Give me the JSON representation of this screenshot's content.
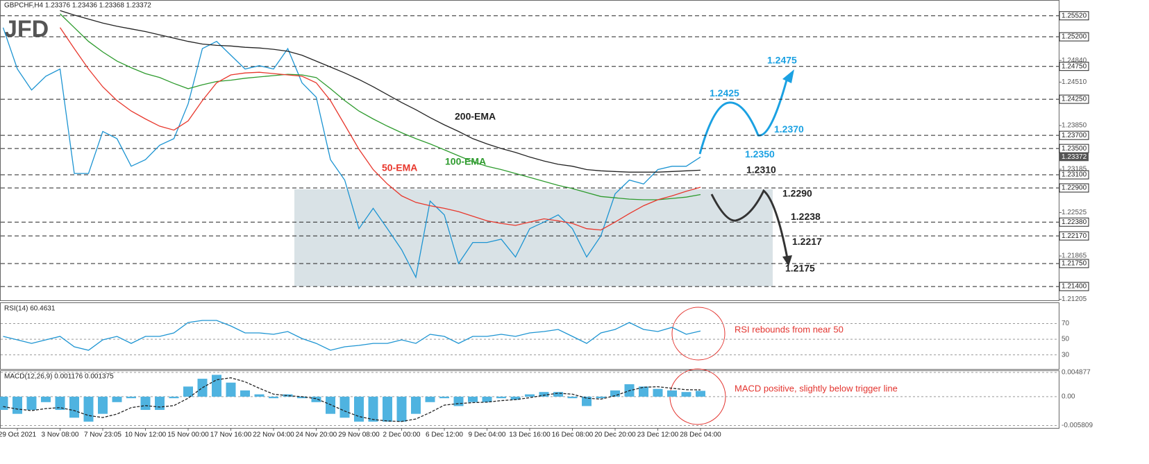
{
  "chart_data": [
    {
      "type": "line",
      "header": "GBPCHF,H4  1.23376 1.23436 1.23368 1.23372",
      "logo": "JFD",
      "categories": [
        null,
        "29 Oct 2021",
        null,
        null,
        "3 Nov 08:00",
        null,
        null,
        "7 Nov 23:05",
        null,
        null,
        "10 Nov 12:00",
        null,
        null,
        "15 Nov 00:00",
        null,
        null,
        "17 Nov 16:00",
        null,
        null,
        "22 Nov 04:00",
        null,
        null,
        "24 Nov 20:00",
        null,
        null,
        "29 Nov 08:00",
        null,
        null,
        "2 Dec 00:00",
        null,
        null,
        "6 Dec 12:00",
        null,
        null,
        "9 Dec 04:00",
        null,
        null,
        "13 Dec 16:00",
        null,
        null,
        "16 Dec 08:00",
        null,
        null,
        "20 Dec 20:00",
        null,
        null,
        "23 Dec 12:00",
        null,
        null,
        "28 Dec 04:00"
      ],
      "series": [
        {
          "color": "#1c94d2",
          "values": [
            1.2534,
            1.2471,
            1.2439,
            1.246,
            1.2471,
            1.2312,
            1.2312,
            1.2376,
            1.2365,
            1.2323,
            1.2333,
            1.2355,
            1.2365,
            1.2418,
            1.2502,
            1.2513,
            1.2492,
            1.2471,
            1.2476,
            1.2471,
            1.2502,
            1.245,
            1.2428,
            1.2333,
            1.2302,
            1.2228,
            1.2259,
            1.2228,
            1.2196,
            1.2154,
            1.227,
            1.2249,
            1.2175,
            1.2207,
            1.2207,
            1.2212,
            1.2185,
            1.2228,
            1.2238,
            1.2249,
            1.2228,
            1.2185,
            1.2217,
            1.2281,
            1.2302,
            1.2296,
            1.2318,
            1.2323,
            1.2323,
            1.2337
          ]
        },
        {
          "name": "200-EMA",
          "color": "#222222",
          "values": [
            null,
            null,
            null,
            null,
            1.256,
            1.2553,
            1.2547,
            1.2541,
            1.2536,
            1.2532,
            1.2528,
            1.2523,
            1.2518,
            1.2513,
            1.2509,
            1.2507,
            1.2506,
            1.2504,
            1.2503,
            1.2501,
            1.2498,
            1.2492,
            1.2483,
            1.2474,
            1.2465,
            1.2455,
            1.2444,
            1.2432,
            1.242,
            1.2409,
            1.2397,
            1.2386,
            1.2376,
            1.2365,
            1.2357,
            1.235,
            1.2344,
            1.2337,
            1.2331,
            1.2326,
            1.2323,
            1.2318,
            1.2316,
            1.2315,
            1.2314,
            1.2314,
            1.2314,
            1.2315,
            1.2316,
            1.2317
          ]
        },
        {
          "name": "100-EMA",
          "color": "#2e9b2e",
          "values": [
            null,
            null,
            null,
            null,
            1.2555,
            1.2534,
            1.2513,
            1.2497,
            1.2483,
            1.2473,
            1.2464,
            1.2458,
            1.2449,
            1.2441,
            1.2447,
            1.2452,
            1.2454,
            1.2457,
            1.2459,
            1.2461,
            1.2463,
            1.2462,
            1.2458,
            1.2441,
            1.2423,
            1.2407,
            1.2395,
            1.2384,
            1.2374,
            1.2365,
            1.2357,
            1.2348,
            1.2339,
            1.233,
            1.2323,
            1.2318,
            1.2312,
            1.2306,
            1.23,
            1.2294,
            1.2289,
            1.2283,
            1.2277,
            1.2275,
            1.2273,
            1.2272,
            1.2272,
            1.2274,
            1.2276,
            1.228
          ]
        },
        {
          "name": "50-EMA",
          "color": "#e8372c",
          "values": [
            null,
            null,
            null,
            null,
            1.2534,
            1.2502,
            1.2471,
            1.2444,
            1.2423,
            1.2407,
            1.2395,
            1.2384,
            1.2378,
            1.2392,
            1.2423,
            1.245,
            1.2462,
            1.2465,
            1.2466,
            1.2464,
            1.2462,
            1.246,
            1.245,
            1.2423,
            1.2386,
            1.2349,
            1.2318,
            1.2296,
            1.2278,
            1.2268,
            1.2263,
            1.2259,
            1.2254,
            1.2247,
            1.224,
            1.2236,
            1.2233,
            1.2238,
            1.2243,
            1.224,
            1.2236,
            1.2228,
            1.2226,
            1.2238,
            1.2251,
            1.2263,
            1.2272,
            1.2278,
            1.2285,
            1.2291
          ]
        }
      ],
      "ylim": [
        1.2119,
        1.2576
      ],
      "yticks": [
        {
          "value": 1.2484,
          "label": "1.24840"
        },
        {
          "value": 1.2451,
          "label": "1.24510"
        },
        {
          "value": 1.2385,
          "label": "1.23850"
        },
        1.23185,
        1.22525,
        1.21865,
        1.21205
      ],
      "levels": [
        {
          "value": 1.2552,
          "label": "1.25520"
        },
        {
          "value": 1.252,
          "label": "1.25200"
        },
        {
          "value": 1.2475,
          "label": "1.24750"
        },
        {
          "value": 1.2425,
          "label": "1.24250"
        },
        {
          "value": 1.237,
          "label": "1.23700"
        },
        {
          "value": 1.235,
          "label": "1.23500"
        },
        {
          "value": 1.231,
          "label": "1.23100"
        },
        {
          "value": 1.229,
          "label": "1.22900"
        },
        {
          "value": 1.2238,
          "label": "1.22380"
        },
        {
          "value": 1.2217,
          "label": "1.22170"
        },
        {
          "value": 1.2175,
          "label": "1.21750"
        },
        {
          "value": 1.214,
          "label": "1.21400"
        }
      ],
      "current": 1.23372,
      "scenario_up": {
        "color": "#1ba1e2",
        "points": [
          {
            "value": 1.2425,
            "label": "1.2425"
          },
          {
            "value": 1.237,
            "label": "1.2370"
          },
          {
            "value": 1.2475,
            "label": "1.2475"
          },
          {
            "value": 1.235,
            "label": "1.2350"
          }
        ]
      },
      "scenario_down": {
        "color": "#222222",
        "points": [
          {
            "value": 1.231,
            "label": "1.2310"
          },
          {
            "value": 1.229,
            "label": "1.2290"
          },
          {
            "value": 1.2238,
            "label": "1.2238"
          },
          {
            "value": 1.2217,
            "label": "1.2217"
          },
          {
            "value": 1.2175,
            "label": "1.2175"
          }
        ]
      }
    },
    {
      "type": "line",
      "header": "RSI(14) 60.4631",
      "color": "#1c94d2",
      "values": [
        53.6,
        49.2,
        44.7,
        49.2,
        53.6,
        40.3,
        35.9,
        49.2,
        53.6,
        44.7,
        53.6,
        53.6,
        58.0,
        71.3,
        74.0,
        74.0,
        66.9,
        58.0,
        58.0,
        56.3,
        59.8,
        50.9,
        44.7,
        35.9,
        40.3,
        42.1,
        44.7,
        44.7,
        49.2,
        44.7,
        56.3,
        53.6,
        44.7,
        53.6,
        53.6,
        56.3,
        53.6,
        58.0,
        59.8,
        62.5,
        53.6,
        44.7,
        58.0,
        62.5,
        71.3,
        62.5,
        59.8,
        65.1,
        56.3,
        60.5
      ],
      "ylim": [
        12,
        97
      ],
      "yticks": [
        70,
        50,
        30
      ],
      "annotation": "RSI rebounds from near 50"
    },
    {
      "type": "bar",
      "header": "MACD(12,26,9) 0.001176 0.001375",
      "series": [
        {
          "color": "#4fb3e0",
          "values": [
            -0.00267,
            -0.00346,
            -0.00267,
            -0.0011,
            -0.00267,
            -0.00424,
            -0.00503,
            -0.00346,
            -0.0011,
            -0.00031,
            -0.00267,
            -0.00267,
            -0.00031,
            0.00204,
            0.00361,
            0.0044,
            0.00283,
            0.00126,
            0.00047,
            -0.00031,
            0.00047,
            -0.00031,
            -0.0011,
            -0.00346,
            -0.00424,
            -0.00503,
            -0.00503,
            -0.00503,
            -0.00503,
            -0.00346,
            -0.0011,
            -0.00031,
            -0.00189,
            -0.0011,
            -0.0011,
            -0.00031,
            -0.00063,
            0.00047,
            0.00094,
            0.00094,
            -0.00031,
            -0.00189,
            -0.00031,
            0.00126,
            0.00251,
            0.00204,
            0.00157,
            0.00126,
            0.00094,
            0.001176
          ]
        },
        {
          "type": "line",
          "color": "#222222",
          "values": [
            -0.002,
            -0.0025,
            -0.0028,
            -0.0024,
            -0.0022,
            -0.0028,
            -0.0038,
            -0.0042,
            -0.0035,
            -0.0022,
            -0.0018,
            -0.0021,
            -0.0018,
            -0.0003,
            0.0018,
            0.0034,
            0.0038,
            0.003,
            0.0017,
            0.0005,
            0.0002,
            0.0,
            -0.0004,
            -0.0016,
            -0.0029,
            -0.004,
            -0.0046,
            -0.0049,
            -0.005,
            -0.0045,
            -0.0032,
            -0.0017,
            -0.0014,
            -0.0012,
            -0.0011,
            -0.0008,
            -0.0006,
            -0.0002,
            0.0003,
            0.0007,
            0.0005,
            -0.0003,
            -0.0005,
            0.0002,
            0.0012,
            0.0019,
            0.002,
            0.0017,
            0.0014,
            0.001375
          ]
        }
      ],
      "ylim": [
        -0.0063,
        0.0053
      ],
      "yticks": [
        0.004877,
        {
          "value": 0,
          "label": "0.00"
        },
        -0.005809
      ],
      "annotation": "MACD positive, slightly below trigger line"
    }
  ]
}
